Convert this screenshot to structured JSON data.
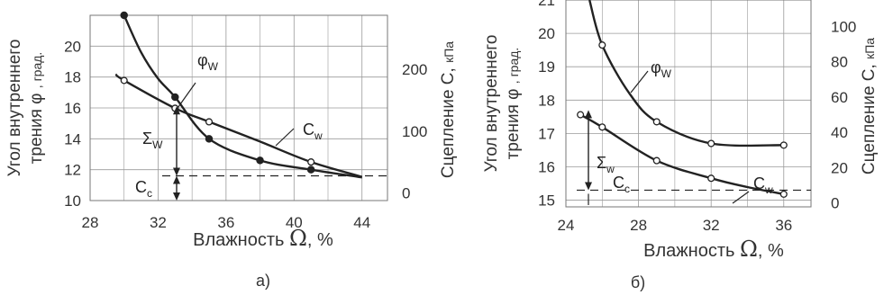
{
  "colors": {
    "line": "#222222",
    "grid": "#9a9a9a",
    "text": "#333333",
    "marker_fill": "#ffffff"
  },
  "chart_data": [
    {
      "type": "line",
      "panel_label": "а)",
      "xlabel_prefix": "Влажность",
      "xlabel_symbol": "Ω",
      "xlabel_suffix": ", %",
      "ylabel_left": {
        "line1": "Угол внутреннего",
        "line2_prefix": "трения",
        "line2_symbol": "φ",
        "line2_unit": ", град."
      },
      "ylabel_right": {
        "main": "Сцепление  С,",
        "unit": "кПа"
      },
      "xlim": [
        28,
        45.5
      ],
      "ylim_left": [
        10,
        22
      ],
      "ylim_right": [
        -12.5,
        287.5
      ],
      "xticks": [
        "28",
        "32",
        "36",
        "40",
        "44"
      ],
      "xtick_values": [
        28,
        32,
        36,
        40,
        44
      ],
      "yticks_left": [
        "10",
        "12",
        "14",
        "16",
        "18",
        "20"
      ],
      "ytick_left_values": [
        10,
        12,
        14,
        16,
        18,
        20
      ],
      "yticks_right": [
        "0",
        "100",
        "200"
      ],
      "ytick_right_values": [
        0,
        100,
        200
      ],
      "grid": true,
      "series": [
        {
          "name": "φw",
          "axis": "left",
          "marker": "filled",
          "x": [
            30,
            31,
            32,
            33,
            35,
            38,
            41,
            44
          ],
          "y": [
            22.0,
            19.6,
            17.9,
            16.7,
            14.0,
            12.6,
            12.0,
            11.5
          ],
          "marker_x": [
            30,
            33,
            35,
            38,
            41
          ],
          "marker_y": [
            22.0,
            16.7,
            14.0,
            12.6,
            12.0
          ]
        },
        {
          "name": "Cw",
          "axis": "right",
          "marker": "open",
          "x": [
            29.5,
            30,
            33,
            35,
            38,
            41,
            44
          ],
          "y": [
            192,
            182,
            137,
            115,
            83,
            50,
            26
          ],
          "marker_x": [
            30,
            33,
            35,
            41
          ],
          "marker_y": [
            182,
            137,
            115,
            50
          ]
        }
      ],
      "annotations": {
        "phi_label": "φ",
        "phi_sub": "W",
        "c_label": "C",
        "c_sub": "w",
        "sigma_label": "Σ",
        "sigma_sub": "W",
        "cc_label": "C",
        "cc_sub": "c",
        "cc_level_left": 11.6
      }
    },
    {
      "type": "line",
      "panel_label": "б)",
      "xlabel_prefix": "Влажность",
      "xlabel_symbol": "Ω",
      "xlabel_suffix": ", %",
      "ylabel_left": {
        "line1": "Угол внутреннего",
        "line2_prefix": "трения",
        "line2_symbol": "φ",
        "line2_unit": ", град."
      },
      "ylabel_right": {
        "main": "Сцепление  С,",
        "unit": "кПа"
      },
      "xlim": [
        24,
        37.5
      ],
      "ylim_left": [
        14.8,
        21
      ],
      "ylim_right": [
        -2.2,
        115
      ],
      "xticks": [
        "24",
        "28",
        "32",
        "36"
      ],
      "xtick_values": [
        24,
        28,
        32,
        36
      ],
      "yticks_left": [
        "15",
        "16",
        "17",
        "18",
        "19",
        "20",
        "21"
      ],
      "ytick_left_values": [
        15,
        16,
        17,
        18,
        19,
        20,
        21
      ],
      "yticks_right": [
        "0",
        "20",
        "40",
        "60",
        "80",
        "100"
      ],
      "ytick_right_values": [
        0,
        20,
        40,
        60,
        80,
        100
      ],
      "grid": true,
      "series": [
        {
          "name": "φw",
          "axis": "left",
          "marker": "open",
          "x": [
            25.3,
            26,
            27.5,
            29,
            32,
            36
          ],
          "y": [
            21.0,
            19.65,
            18.2,
            17.35,
            16.7,
            16.65
          ],
          "marker_x": [
            26,
            29,
            32,
            36
          ],
          "marker_y": [
            19.65,
            17.35,
            16.7,
            16.65
          ]
        },
        {
          "name": "Cw",
          "axis": "right",
          "marker": "open",
          "x": [
            24.8,
            26,
            29,
            32,
            34,
            36
          ],
          "y": [
            50,
            43,
            24,
            14,
            9,
            5
          ],
          "marker_x": [
            24.8,
            26,
            29,
            32,
            36
          ],
          "marker_y": [
            50,
            43,
            24,
            14,
            5
          ]
        }
      ],
      "annotations": {
        "phi_label": "φ",
        "phi_sub": "W",
        "c_label": "C",
        "c_sub": "w",
        "sigma_label": "Σ",
        "sigma_sub": "w",
        "cc_label": "C",
        "cc_sub": "c",
        "cc_level_left": 15.3
      }
    }
  ]
}
